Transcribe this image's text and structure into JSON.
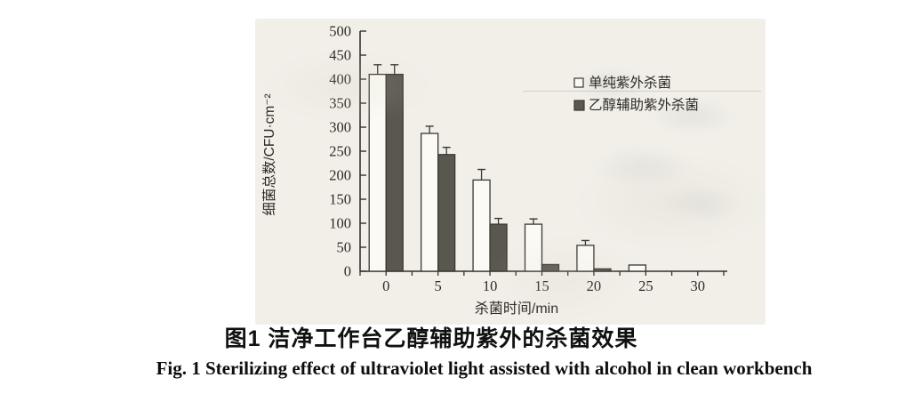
{
  "figure": {
    "caption_zh": "图1  洁净工作台乙醇辅助紫外的杀菌效果",
    "caption_en": "Fig. 1  Sterilizing effect of ultraviolet light assisted with alcohol in clean workbench"
  },
  "chart_data": {
    "type": "bar",
    "title": "",
    "xlabel": "杀菌时间/min",
    "ylabel": "细菌总数/CFU·cm⁻²",
    "categories": [
      "0",
      "5",
      "10",
      "15",
      "20",
      "25",
      "30"
    ],
    "series": [
      {
        "name": "单纯紫外杀菌",
        "fill": "#fbfaf4",
        "values": [
          410,
          287,
          190,
          98,
          54,
          13,
          0
        ],
        "errors": [
          20,
          15,
          22,
          11,
          10,
          0,
          0
        ]
      },
      {
        "name": "乙醇辅助紫外杀菌",
        "fill": "#5a574f",
        "values": [
          410,
          243,
          98,
          14,
          5,
          0,
          0
        ],
        "errors": [
          20,
          15,
          12,
          0,
          0,
          0,
          0
        ]
      }
    ],
    "ylim": [
      0,
      500
    ],
    "ytick_step": 50,
    "grid": false,
    "legend_position": "upper right",
    "colors": {
      "axis": "#34312c",
      "text": "#2e2b27",
      "bar_stroke": "#3b3833",
      "paper": "#f1efe8"
    }
  }
}
